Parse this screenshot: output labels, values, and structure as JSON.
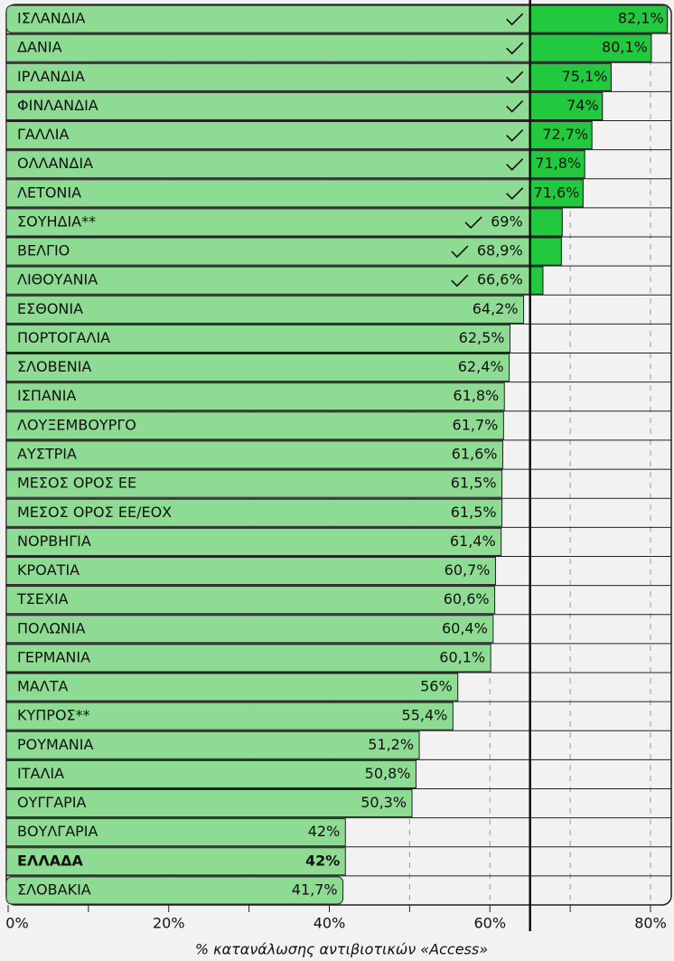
{
  "chart_data": {
    "type": "barh",
    "categories": [
      "ΙΣΛΑΝΔΙΑ",
      "ΔΑΝΙΑ",
      "ΙΡΛΑΝΔΙΑ",
      "ΦΙΝΛΑΝΔΙΑ",
      "ΓΑΛΛΙΑ",
      "ΟΛΛΑΝΔΙΑ",
      "ΛΕΤΟΝΙΑ",
      "ΣΟΥΗΔΙΑ**",
      "ΒΕΛΓΙΟ",
      "ΛΙΘΟΥΑΝΙΑ",
      "ΕΣΘΟΝΙΑ",
      "ΠΟΡΤΟΓΑΛΙΑ",
      "ΣΛΟΒΕΝΙΑ",
      "ΙΣΠΑΝΙΑ",
      "ΛΟΥΞΕΜΒΟΥΡΓΟ",
      "ΑΥΣΤΡΙΑ",
      "ΜΕΣΟΣ ΟΡΟΣ ΕΕ",
      "ΜΕΣΟΣ ΟΡΟΣ ΕΕ/ΕΟΧ",
      "ΝΟΡΒΗΓΙΑ",
      "ΚΡΟΑΤΙΑ",
      "ΤΣΕΧΙΑ",
      "ΠΟΛΩΝΙΑ",
      "ΓΕΡΜΑΝΙΑ",
      "ΜΑΛΤΑ",
      "ΚΥΠΡΟΣ**",
      "ΡΟΥΜΑΝΙΑ",
      "ΙΤΑΛΙΑ",
      "ΟΥΓΓΑΡΙΑ",
      "ΒΟΥΛΓΑΡΙΑ",
      "ΕΛΛΑΔΑ",
      "ΣΛΟΒΑΚΙΑ"
    ],
    "values": [
      82.1,
      80.1,
      75.1,
      74,
      72.7,
      71.8,
      71.6,
      69,
      68.9,
      66.6,
      64.2,
      62.5,
      62.4,
      61.8,
      61.7,
      61.6,
      61.5,
      61.5,
      61.4,
      60.7,
      60.6,
      60.4,
      60.1,
      56,
      55.4,
      51.2,
      50.8,
      50.3,
      42,
      42,
      41.7
    ],
    "value_labels": [
      "82,1%",
      "80,1%",
      "75,1%",
      "74%",
      "72,7%",
      "71,8%",
      "71,6%",
      "69%",
      "68,9%",
      "66,6%",
      "64,2%",
      "62,5%",
      "62,4%",
      "61,8%",
      "61,7%",
      "61,6%",
      "61,5%",
      "61,5%",
      "61,4%",
      "60,7%",
      "60,6%",
      "60,4%",
      "60,1%",
      "56%",
      "55,4%",
      "51,2%",
      "50,8%",
      "50,3%",
      "42%",
      "42%",
      "41,7%"
    ],
    "color": "#8edb93",
    "target_color": "#22c93e",
    "target": 65,
    "emphasis": 29,
    "xlabel": "% κατανάλωσης αντιβιοτικών «Access»",
    "xlim": [
      0,
      80
    ],
    "xticks": [
      {
        "value": 0,
        "label": "0%"
      },
      {
        "value": 20,
        "label": "20%"
      },
      {
        "value": 40,
        "label": "40%"
      },
      {
        "value": 60,
        "label": "60%"
      },
      {
        "value": 80,
        "label": "80%"
      }
    ],
    "xminorticks": [
      10,
      30,
      50,
      70
    ],
    "grid": true
  }
}
